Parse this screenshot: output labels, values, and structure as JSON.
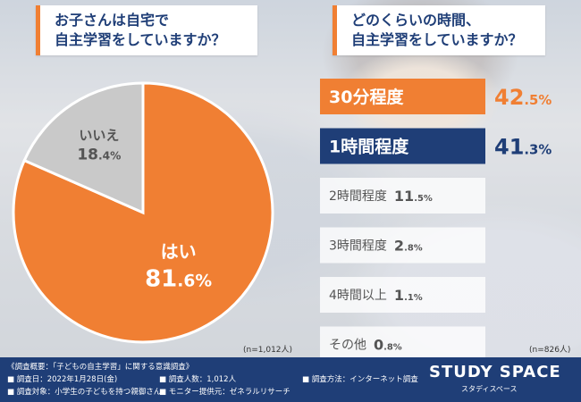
{
  "left_question": "お子さんは自宅で\n自主学習をしていますか？",
  "right_question": "どのくらいの時間、\n自主学習をしていますか？",
  "chart_data": [
    {
      "type": "pie",
      "slices": [
        {
          "label": "はい",
          "value": 81.6,
          "color": "#f07f33"
        },
        {
          "label": "いいえ",
          "value": 18.4,
          "color": "#c9c9c9"
        }
      ],
      "note": "(n=1,012人)"
    },
    {
      "type": "bar",
      "categories": [
        "30分程度",
        "1時間程度",
        "2時間程度",
        "3時間程度",
        "4時間以上",
        "その他"
      ],
      "values": [
        42.5,
        41.3,
        11.5,
        2.8,
        1.1,
        0.8
      ],
      "bar_colors": [
        "#f07f33",
        "#1f3e77",
        "#ffffff",
        "#ffffff",
        "#ffffff",
        "#ffffff"
      ],
      "note": "(n=826人)"
    }
  ],
  "footer": {
    "survey_title": "《調査概要：「子どもの自主学習」に関する意識調査》",
    "date": "■ 調査日：2022年1月28日(金)",
    "people": "■ 調査人数：1,012人",
    "method": "■ 調査方法：インターネット調査",
    "target": "■ 調査対象：小学生の子どもを持つ親御さん",
    "provider": "■ モニター提供元：ゼネラルリサーチ",
    "logo": "STUDY SPACE",
    "logo_sub": "スタディスペース"
  }
}
